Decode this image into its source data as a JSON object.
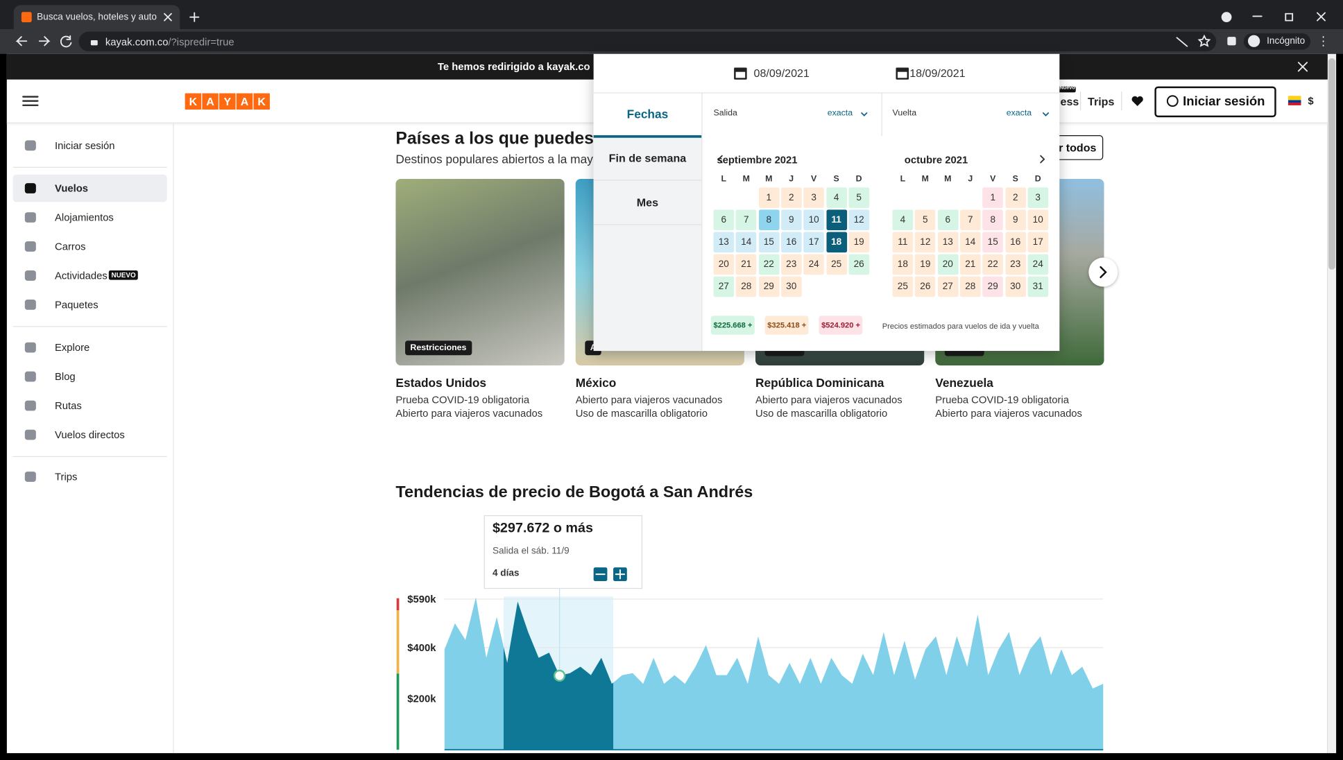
{
  "browser": {
    "tab_title": "Busca vuelos, hoteles y autos de",
    "url_host": "kayak.com.co",
    "url_path": "/?ispredir=true",
    "profile": "Incógnito"
  },
  "banner": {
    "text": "Te hemos redirigido a kayak.co"
  },
  "header": {
    "logo": [
      "K",
      "A",
      "Y",
      "A",
      "K"
    ],
    "new_badge": "Nuevo",
    "nav_partial": "ess",
    "trips": "Trips",
    "sign_in": "Iniciar sesión",
    "currency": "$"
  },
  "sidebar": {
    "items": [
      {
        "label": "Iniciar sesión"
      },
      {
        "label": "Vuelos",
        "active": true
      },
      {
        "label": "Alojamientos"
      },
      {
        "label": "Carros"
      },
      {
        "label": "Actividades",
        "badge": "NUEVO"
      },
      {
        "label": "Paquetes"
      },
      {
        "label": "Explore"
      },
      {
        "label": "Blog"
      },
      {
        "label": "Rutas"
      },
      {
        "label": "Vuelos directos"
      },
      {
        "label": "Trips"
      }
    ]
  },
  "destinations": {
    "title": "Países a los que puedes",
    "subtitle": "Destinos populares abiertos a la mayoría",
    "view_all": "r todos",
    "cards": [
      {
        "badge": "Restricciones",
        "name": "Estados Unidos",
        "lines": [
          "Prueba COVID-19 obligatoria",
          "Abierto para viajeros vacunados"
        ]
      },
      {
        "badge": "A",
        "name": "México",
        "lines": [
          "Abierto para viajeros vacunados",
          "Uso de mascarilla obligatorio"
        ]
      },
      {
        "name": "República Dominicana",
        "lines": [
          "Abierto para viajeros vacunados",
          "Uso de mascarilla obligatorio"
        ]
      },
      {
        "name": "Venezuela",
        "lines": [
          "Prueba COVID-19 obligatoria",
          "Abierto para viajeros vacunados"
        ]
      }
    ]
  },
  "date_picker": {
    "depart": "08/09/2021",
    "return": "18/09/2021",
    "tabs": [
      "Fechas",
      "Fin de semana",
      "Mes"
    ],
    "depart_label": "Salida",
    "depart_flex": "exacta",
    "return_label": "Vuelta",
    "return_flex": "exacta",
    "weekdays": [
      "L",
      "M",
      "M",
      "J",
      "V",
      "S",
      "D"
    ],
    "months": [
      {
        "name": "septiembre 2021",
        "days": [
          1,
          2,
          3,
          4,
          5,
          6,
          7,
          8,
          9,
          10,
          11,
          12,
          13,
          14,
          15,
          16,
          17,
          18,
          19,
          20,
          21,
          22,
          23,
          24,
          25,
          26,
          27,
          28,
          29,
          30
        ],
        "colors": [
          "#feead7",
          "#feead7",
          "#feead7",
          "#d6f5e4",
          "#d6f5e4",
          "#d6f5e4",
          "#d6f5e4",
          "#8ed4ef",
          "#d2ecf7",
          "#d2ecf7",
          "#0b5f7a",
          "#d2ecf7",
          "#d2ecf7",
          "#d2ecf7",
          "#d2ecf7",
          "#d2ecf7",
          "#d2ecf7",
          "#0b5f7a",
          "#feead7",
          "#feead7",
          "#feead7",
          "#d6f5e4",
          "#feead7",
          "#feead7",
          "#feead7",
          "#d6f5e4",
          "#d6f5e4",
          "#feead7",
          "#feead7",
          "#feead7"
        ]
      },
      {
        "name": "octubre 2021",
        "days": [
          1,
          2,
          3,
          4,
          5,
          6,
          7,
          8,
          9,
          10,
          11,
          12,
          13,
          14,
          15,
          16,
          17,
          18,
          19,
          20,
          21,
          22,
          23,
          24,
          25,
          26,
          27,
          28,
          29,
          30,
          31
        ],
        "colors": [
          "#fde3e7",
          "#feead7",
          "#d6f5e4",
          "#d6f5e4",
          "#feead7",
          "#d6f5e4",
          "#feead7",
          "#fde3e7",
          "#feead7",
          "#feead7",
          "#feead7",
          "#feead7",
          "#feead7",
          "#feead7",
          "#fde3e7",
          "#feead7",
          "#feead7",
          "#feead7",
          "#feead7",
          "#d6f5e4",
          "#feead7",
          "#feead7",
          "#feead7",
          "#d6f5e4",
          "#feead7",
          "#feead7",
          "#feead7",
          "#feead7",
          "#fde3e7",
          "#feead7",
          "#d6f5e4"
        ]
      }
    ],
    "legend": [
      {
        "label": "$225.668 +",
        "color": "#d6f5e4"
      },
      {
        "label": "$325.418 +",
        "color": "#feead7"
      },
      {
        "label": "$524.920 +",
        "color": "#fde3e7"
      }
    ],
    "legend_note": "Precios estimados para vuelos de ida y vuelta"
  },
  "price_trends": {
    "title": "Tendencias de precio de Bogotá a San Andrés",
    "tooltip": {
      "price": "$297.672 o más",
      "departure": "Salida el sáb. 11/9",
      "duration": "4 días"
    },
    "chart": {
      "type": "area",
      "ylim": [
        0,
        600000
      ],
      "yticks": [
        {
          "value": 200000,
          "label": "$200k"
        },
        {
          "value": 400000,
          "label": "$400k"
        },
        {
          "value": 590000,
          "label": "$590k"
        }
      ],
      "grid": true,
      "color": "#7fd0e8",
      "highlight_color": "#0e7896",
      "values": [
        393000,
        495000,
        430000,
        597000,
        360000,
        520000,
        340000,
        580000,
        460000,
        360000,
        380000,
        290000,
        300000,
        325000,
        292000,
        360000,
        258000,
        292000,
        300000,
        258000,
        360000,
        258000,
        292000,
        258000,
        325000,
        410000,
        292000,
        292000,
        360000,
        258000,
        444000,
        292000,
        258000,
        340000,
        258000,
        360000,
        258000,
        360000,
        292000,
        258000,
        376000,
        292000,
        461000,
        292000,
        427000,
        275000,
        393000,
        444000,
        292000,
        444000,
        325000,
        530000,
        292000,
        393000,
        461000,
        292000,
        393000,
        444000,
        292000,
        393000,
        292000,
        325000,
        240000,
        258000
      ]
    }
  }
}
